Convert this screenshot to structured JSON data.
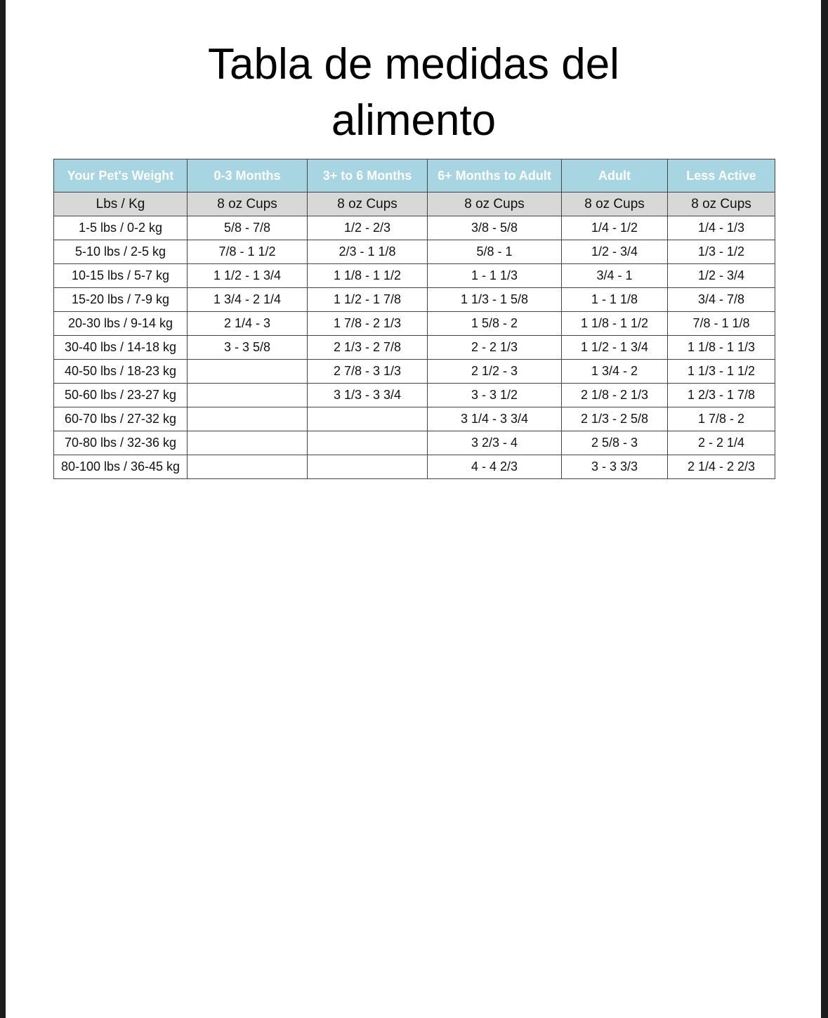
{
  "title": "Tabla de medidas del alimento",
  "table": {
    "header": [
      "Your Pet's Weight",
      "0-3 Months",
      "3+ to 6 Months",
      "6+ Months to Adult",
      "Adult",
      "Less Active"
    ],
    "units": [
      "Lbs / Kg",
      "8 oz Cups",
      "8 oz Cups",
      "8 oz Cups",
      "8 oz Cups",
      "8 oz Cups"
    ],
    "rows": [
      [
        "1-5 lbs / 0-2 kg",
        "5/8 - 7/8",
        "1/2 - 2/3",
        "3/8 - 5/8",
        "1/4 - 1/2",
        "1/4 - 1/3"
      ],
      [
        "5-10 lbs / 2-5 kg",
        "7/8 - 1 1/2",
        "2/3 - 1 1/8",
        "5/8 - 1",
        "1/2 - 3/4",
        "1/3 - 1/2"
      ],
      [
        "10-15 lbs / 5-7 kg",
        "1 1/2 - 1 3/4",
        "1 1/8 - 1 1/2",
        "1 - 1 1/3",
        "3/4 - 1",
        "1/2 - 3/4"
      ],
      [
        "15-20 lbs / 7-9 kg",
        "1 3/4 - 2 1/4",
        "1 1/2 - 1 7/8",
        "1 1/3 - 1 5/8",
        "1 - 1 1/8",
        "3/4 - 7/8"
      ],
      [
        "20-30 lbs / 9-14 kg",
        "2 1/4 - 3",
        "1 7/8 - 2 1/3",
        "1 5/8 - 2",
        "1 1/8 - 1 1/2",
        "7/8 - 1 1/8"
      ],
      [
        "30-40 lbs / 14-18 kg",
        "3 - 3 5/8",
        "2 1/3 - 2 7/8",
        "2 - 2 1/3",
        "1 1/2 - 1 3/4",
        "1 1/8 - 1 1/3"
      ],
      [
        "40-50 lbs / 18-23 kg",
        null,
        "2 7/8 - 3 1/3",
        "2 1/2 - 3",
        "1 3/4 - 2",
        "1 1/3 - 1 1/2"
      ],
      [
        "50-60 lbs / 23-27 kg",
        null,
        "3 1/3 - 3 3/4",
        "3 - 3 1/2",
        "2 1/8 - 2 1/3",
        "1 2/3 - 1 7/8"
      ],
      [
        "60-70 lbs / 27-32 kg",
        null,
        null,
        "3 1/4 - 3 3/4",
        "2 1/3 - 2 5/8",
        "1 7/8 - 2"
      ],
      [
        "70-80 lbs / 32-36 kg",
        null,
        null,
        "3 2/3 - 4",
        "2 5/8 - 3",
        "2 - 2 1/4"
      ],
      [
        "80-100 lbs / 36-45 kg",
        null,
        null,
        "4 - 4 2/3",
        "3 - 3 3/3",
        "2 1/4 - 2 2/3"
      ]
    ]
  }
}
